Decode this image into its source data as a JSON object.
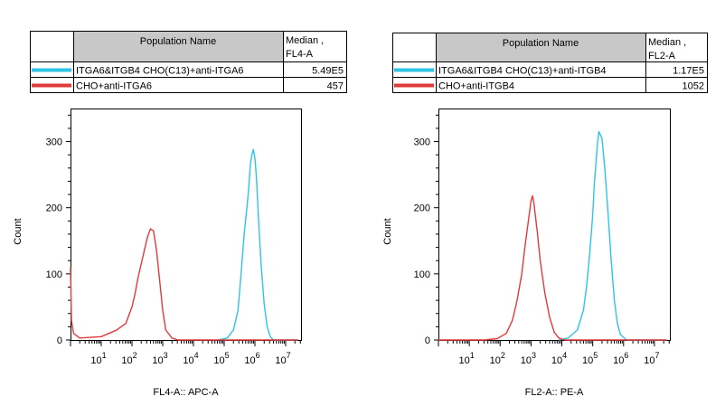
{
  "chart_data": [
    {
      "type": "histogram",
      "xscale": "log",
      "xlim_exp": [
        0,
        7.5
      ],
      "ylim": [
        0,
        350
      ],
      "yticks": [
        0,
        100,
        200,
        300
      ],
      "xtick_labels": [
        "10",
        "10",
        "10",
        "10",
        "10",
        "10",
        "10"
      ],
      "xtick_exponents": [
        "1",
        "2",
        "3",
        "4",
        "5",
        "6",
        "7"
      ],
      "xlabel": "FL4-A:: APC-A",
      "ylabel": "Count",
      "table": {
        "header_name": "Population Name",
        "header_stat_line1": "Median ,",
        "header_stat_line2": "FL4-A",
        "rows": [
          {
            "name": "ITGA6&ITGB4 CHO(C13)+anti-ITGA6",
            "value": "5.49E5",
            "color": "#2ec4e6"
          },
          {
            "name": "CHO+anti-ITGA6",
            "value": "457",
            "color": "#e03a3a"
          }
        ]
      },
      "series": [
        {
          "name": "ITGA6&ITGB4 CHO(C13)+anti-ITGA6",
          "color": "#2ec4e6",
          "x": [
            4.8,
            5.1,
            5.3,
            5.45,
            5.55,
            5.65,
            5.75,
            5.8,
            5.85,
            5.9,
            5.95,
            6.0,
            6.05,
            6.12,
            6.2,
            6.3,
            6.4,
            6.5,
            6.6,
            7.4
          ],
          "y": [
            0,
            3,
            15,
            45,
            100,
            160,
            205,
            230,
            265,
            280,
            288,
            275,
            245,
            180,
            115,
            55,
            20,
            5,
            0,
            0
          ]
        },
        {
          "name": "CHO+anti-ITGA6",
          "color": "#e03a3a",
          "x": [
            0.0,
            0.03,
            0.1,
            0.3,
            1.0,
            1.5,
            1.8,
            2.0,
            2.1,
            2.2,
            2.3,
            2.4,
            2.5,
            2.6,
            2.7,
            2.8,
            2.9,
            3.0,
            3.1,
            3.3,
            3.5,
            7.4
          ],
          "y": [
            110,
            30,
            10,
            3,
            5,
            15,
            25,
            50,
            70,
            95,
            115,
            135,
            155,
            168,
            165,
            135,
            90,
            45,
            15,
            3,
            0,
            0
          ]
        }
      ]
    },
    {
      "type": "histogram",
      "xscale": "log",
      "xlim_exp": [
        0,
        7.5
      ],
      "ylim": [
        0,
        350
      ],
      "yticks": [
        0,
        100,
        200,
        300
      ],
      "xtick_labels": [
        "10",
        "10",
        "10",
        "10",
        "10",
        "10",
        "10"
      ],
      "xtick_exponents": [
        "1",
        "2",
        "3",
        "4",
        "5",
        "6",
        "7"
      ],
      "xlabel": "FL2-A:: PE-A",
      "ylabel": "Count",
      "table": {
        "header_name": "Population Name",
        "header_stat_line1": "Median ,",
        "header_stat_line2": "FL2-A",
        "rows": [
          {
            "name": "ITGA6&ITGB4 CHO(C13)+anti-ITGB4",
            "value": "1.17E5",
            "color": "#2ec4e6"
          },
          {
            "name": "CHO+anti-ITGB4",
            "value": "1052",
            "color": "#e03a3a"
          }
        ]
      },
      "series": [
        {
          "name": "ITGA6&ITGB4 CHO(C13)+anti-ITGB4",
          "color": "#2ec4e6",
          "x": [
            3.9,
            4.2,
            4.5,
            4.7,
            4.8,
            4.9,
            5.0,
            5.05,
            5.1,
            5.15,
            5.2,
            5.3,
            5.4,
            5.5,
            5.6,
            5.7,
            5.8,
            5.9,
            6.1,
            7.4
          ],
          "y": [
            0,
            3,
            15,
            45,
            80,
            130,
            190,
            235,
            265,
            295,
            315,
            305,
            255,
            190,
            120,
            60,
            25,
            8,
            0,
            0
          ]
        },
        {
          "name": "CHO+anti-ITGB4",
          "color": "#e03a3a",
          "x": [
            0.0,
            1.5,
            1.9,
            2.2,
            2.4,
            2.55,
            2.7,
            2.8,
            2.9,
            3.0,
            3.05,
            3.1,
            3.2,
            3.3,
            3.45,
            3.6,
            3.75,
            3.9,
            4.1,
            7.4
          ],
          "y": [
            0,
            0,
            2,
            10,
            30,
            60,
            100,
            140,
            175,
            210,
            218,
            205,
            165,
            120,
            70,
            35,
            12,
            3,
            0,
            0
          ]
        }
      ]
    }
  ]
}
